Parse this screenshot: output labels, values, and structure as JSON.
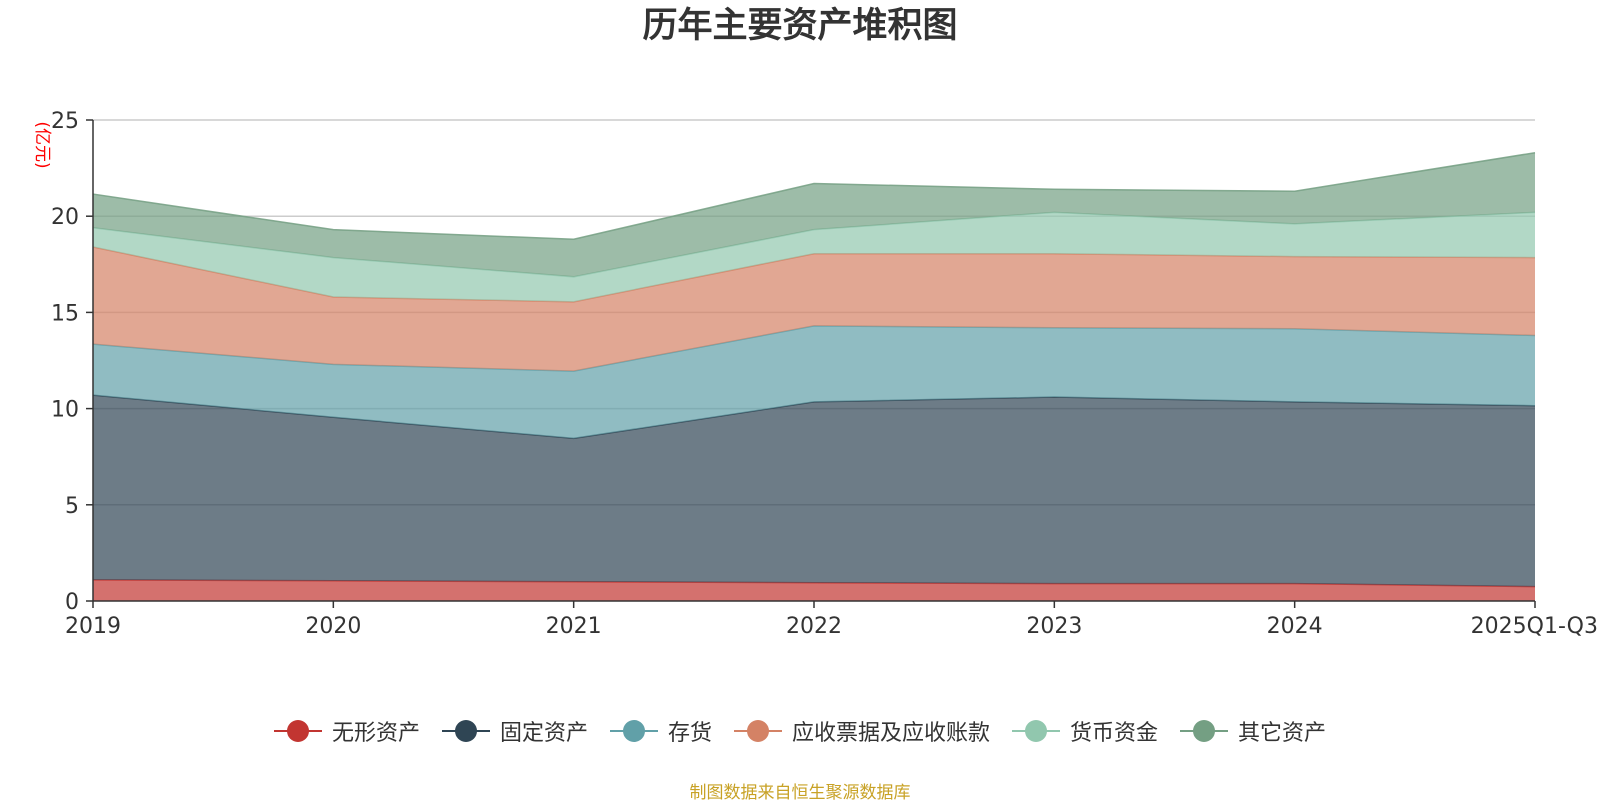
{
  "chart_data": {
    "type": "area",
    "stacked": true,
    "title": "历年主要资产堆积图",
    "ylabel": "(亿元)",
    "xlabel": "",
    "ylim": [
      0,
      25
    ],
    "yticks": [
      0,
      5,
      10,
      15,
      20,
      25
    ],
    "categories": [
      "2019",
      "2020",
      "2021",
      "2022",
      "2023",
      "2024",
      "2025Q1-Q3"
    ],
    "grid": true,
    "legend_position": "bottom",
    "series": [
      {
        "name": "无形资产",
        "color": "#c23531",
        "values": [
          1.1,
          1.05,
          1.0,
          0.95,
          0.9,
          0.9,
          0.75
        ]
      },
      {
        "name": "固定资产",
        "color": "#2f4554",
        "values": [
          9.6,
          8.5,
          7.45,
          9.4,
          9.7,
          9.45,
          9.4
        ]
      },
      {
        "name": "存货",
        "color": "#61a0a8",
        "values": [
          2.65,
          2.75,
          3.5,
          3.95,
          3.6,
          3.8,
          3.65
        ]
      },
      {
        "name": "应收票据及应收账款",
        "color": "#d48265",
        "values": [
          5.05,
          3.5,
          3.6,
          3.75,
          3.85,
          3.75,
          4.05
        ]
      },
      {
        "name": "货币资金",
        "color": "#91c7ae",
        "values": [
          1.0,
          2.05,
          1.3,
          1.25,
          2.15,
          1.7,
          2.35
        ]
      },
      {
        "name": "其它资产",
        "color": "#749f83",
        "values": [
          1.75,
          1.45,
          1.95,
          2.4,
          1.2,
          1.7,
          3.1
        ]
      }
    ]
  },
  "source_note": "制图数据来自恒生聚源数据库"
}
